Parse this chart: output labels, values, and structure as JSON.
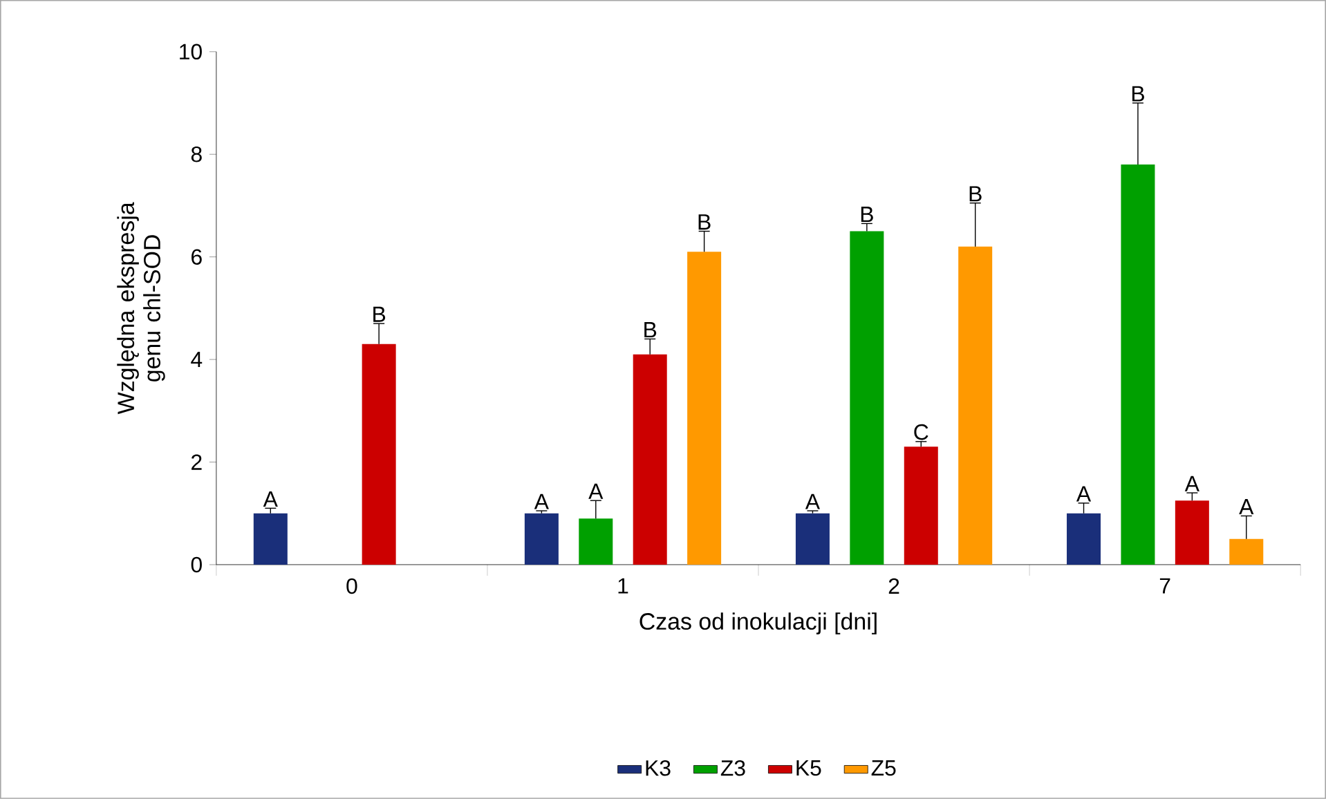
{
  "chart_data": {
    "type": "bar",
    "xlabel": "Czas od inokulacji [dni]",
    "ylabel": "Względna ekspresja genu chl-SOD",
    "categories": [
      "0",
      "1",
      "2",
      "7"
    ],
    "series": [
      {
        "name": "K3",
        "color": "#1a2f7a",
        "values": [
          1.0,
          1.0,
          1.0,
          1.0
        ],
        "errors": [
          0.1,
          0.05,
          0.05,
          0.2
        ],
        "value_labels": [
          "A",
          "A",
          "A",
          "A"
        ]
      },
      {
        "name": "Z3",
        "color": "#00a000",
        "values": [
          null,
          0.9,
          6.5,
          7.8
        ],
        "errors": [
          null,
          0.35,
          0.15,
          1.2
        ],
        "value_labels": [
          null,
          "A",
          "B",
          "B"
        ]
      },
      {
        "name": "K5",
        "color": "#cc0000",
        "values": [
          4.3,
          4.1,
          2.3,
          1.25
        ],
        "errors": [
          0.4,
          0.3,
          0.1,
          0.15
        ],
        "value_labels": [
          "B",
          "B",
          "C",
          "A"
        ]
      },
      {
        "name": "Z5",
        "color": "#ff9900",
        "values": [
          null,
          6.1,
          6.2,
          0.5
        ],
        "errors": [
          null,
          0.4,
          0.85,
          0.45
        ],
        "value_labels": [
          null,
          "B",
          "B",
          "A"
        ]
      }
    ],
    "ylim": [
      0,
      10
    ],
    "yticks": [
      0,
      2,
      4,
      6,
      8,
      10
    ],
    "grid": false,
    "legend": "bottom"
  }
}
